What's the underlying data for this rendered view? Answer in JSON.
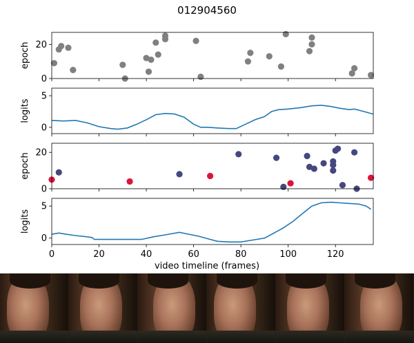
{
  "figure": {
    "title": "012904560",
    "xlabel": "video timeline (frames)"
  },
  "chart_data": [
    {
      "type": "scatter",
      "ylabel": "epoch",
      "xlim": [
        0,
        136
      ],
      "ylim": [
        0,
        27
      ],
      "yticks": [
        0,
        20
      ],
      "series": [
        {
          "color": "#808080",
          "points": [
            [
              1,
              9
            ],
            [
              3,
              17
            ],
            [
              4,
              19
            ],
            [
              7,
              18
            ],
            [
              9,
              5
            ],
            [
              30,
              8
            ],
            [
              31,
              0
            ],
            [
              40,
              12
            ],
            [
              41,
              4
            ],
            [
              42,
              11
            ],
            [
              44,
              21
            ],
            [
              45,
              14
            ],
            [
              48,
              23
            ],
            [
              48,
              25
            ],
            [
              61,
              22
            ],
            [
              63,
              1
            ],
            [
              83,
              10
            ],
            [
              84,
              15
            ],
            [
              92,
              13
            ],
            [
              97,
              7
            ],
            [
              99,
              26
            ],
            [
              109,
              16
            ],
            [
              110,
              20
            ],
            [
              110,
              24
            ],
            [
              127,
              3
            ],
            [
              128,
              6
            ],
            [
              135,
              2
            ]
          ]
        }
      ]
    },
    {
      "type": "line",
      "ylabel": "logits",
      "xlim": [
        0,
        136
      ],
      "ylim": [
        -1,
        6.2
      ],
      "yticks": [
        0,
        5
      ],
      "series": [
        {
          "color": "#1f77b4",
          "points": [
            [
              0,
              1.1
            ],
            [
              5,
              1.0
            ],
            [
              10,
              1.1
            ],
            [
              15,
              0.7
            ],
            [
              20,
              0.1
            ],
            [
              25,
              -0.2
            ],
            [
              28,
              -0.3
            ],
            [
              32,
              -0.1
            ],
            [
              36,
              0.5
            ],
            [
              40,
              1.2
            ],
            [
              44,
              2.0
            ],
            [
              48,
              2.2
            ],
            [
              52,
              2.1
            ],
            [
              56,
              1.6
            ],
            [
              60,
              0.5
            ],
            [
              63,
              0.0
            ],
            [
              66,
              0.0
            ],
            [
              70,
              -0.1
            ],
            [
              75,
              -0.2
            ],
            [
              78,
              -0.2
            ],
            [
              82,
              0.5
            ],
            [
              86,
              1.2
            ],
            [
              90,
              1.7
            ],
            [
              93,
              2.5
            ],
            [
              96,
              2.8
            ],
            [
              100,
              2.9
            ],
            [
              105,
              3.1
            ],
            [
              110,
              3.4
            ],
            [
              114,
              3.5
            ],
            [
              118,
              3.3
            ],
            [
              122,
              3.0
            ],
            [
              126,
              2.8
            ],
            [
              128,
              2.9
            ],
            [
              131,
              2.6
            ],
            [
              136,
              2.1
            ]
          ]
        }
      ]
    },
    {
      "type": "scatter",
      "ylabel": "epoch",
      "xlim": [
        0,
        136
      ],
      "ylim": [
        0,
        25
      ],
      "yticks": [
        0,
        20
      ],
      "series": [
        {
          "color": "#45477e",
          "points": [
            [
              3,
              9
            ],
            [
              54,
              8
            ],
            [
              79,
              19
            ],
            [
              95,
              17
            ],
            [
              98,
              1
            ],
            [
              108,
              18
            ],
            [
              109,
              12
            ],
            [
              111,
              11
            ],
            [
              115,
              14
            ],
            [
              119,
              15
            ],
            [
              119,
              13
            ],
            [
              119,
              10
            ],
            [
              120,
              21
            ],
            [
              121,
              22
            ],
            [
              123,
              2
            ],
            [
              128,
              20
            ],
            [
              129,
              0
            ]
          ]
        },
        {
          "color": "#dc143c",
          "points": [
            [
              0,
              5
            ],
            [
              33,
              4
            ],
            [
              67,
              7
            ],
            [
              101,
              3
            ],
            [
              135,
              6
            ]
          ]
        }
      ]
    },
    {
      "type": "line",
      "ylabel": "logits",
      "xlim": [
        0,
        136
      ],
      "ylim": [
        -1,
        6.2
      ],
      "yticks": [
        0,
        5
      ],
      "xticks": [
        0,
        20,
        40,
        60,
        80,
        100,
        120
      ],
      "series": [
        {
          "color": "#1f77b4",
          "points": [
            [
              0,
              0.6
            ],
            [
              3,
              0.8
            ],
            [
              6,
              0.6
            ],
            [
              10,
              0.4
            ],
            [
              15,
              0.2
            ],
            [
              17,
              0.1
            ],
            [
              18,
              -0.2
            ],
            [
              25,
              -0.2
            ],
            [
              30,
              -0.2
            ],
            [
              38,
              -0.2
            ],
            [
              43,
              0.2
            ],
            [
              48,
              0.5
            ],
            [
              54,
              0.9
            ],
            [
              58,
              0.6
            ],
            [
              62,
              0.3
            ],
            [
              66,
              -0.1
            ],
            [
              70,
              -0.5
            ],
            [
              75,
              -0.6
            ],
            [
              80,
              -0.6
            ],
            [
              85,
              -0.3
            ],
            [
              90,
              0.0
            ],
            [
              94,
              0.8
            ],
            [
              98,
              1.6
            ],
            [
              102,
              2.6
            ],
            [
              106,
              3.8
            ],
            [
              110,
              5.0
            ],
            [
              114,
              5.5
            ],
            [
              118,
              5.6
            ],
            [
              122,
              5.5
            ],
            [
              126,
              5.4
            ],
            [
              130,
              5.3
            ],
            [
              133,
              5.0
            ],
            [
              135,
              4.5
            ]
          ]
        }
      ]
    }
  ],
  "filmstrip": {
    "frame_count": 6
  }
}
